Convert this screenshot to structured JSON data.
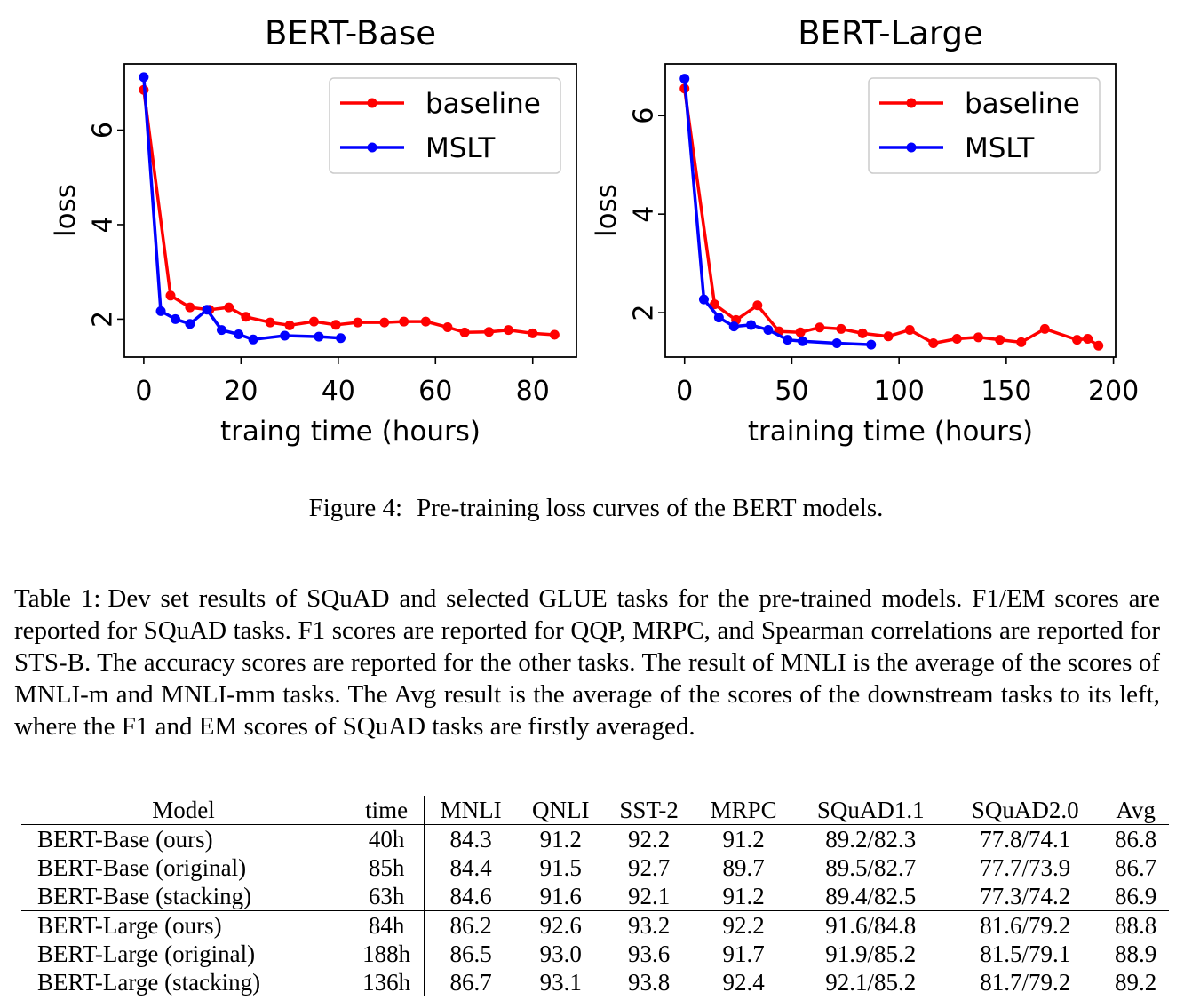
{
  "figure": {
    "caption_label": "Figure 4:",
    "caption_text": "Pre-training loss curves of the BERT models."
  },
  "chart_data": [
    {
      "type": "line",
      "title": "BERT-Base",
      "xlabel": "traing time (hours)",
      "ylabel": "loss",
      "xlim": [
        -4,
        89
      ],
      "ylim": [
        1.2,
        7.4
      ],
      "xticks": [
        0,
        20,
        40,
        60,
        80
      ],
      "yticks": [
        2,
        4,
        6
      ],
      "legend": "upper-right",
      "grid": false,
      "series": [
        {
          "name": "baseline",
          "color": "#ff0000",
          "x": [
            0,
            5.5,
            9.5,
            13.5,
            17.5,
            21,
            26,
            30,
            35,
            39.5,
            44,
            49.5,
            53.5,
            58,
            62.5,
            66,
            71,
            75,
            80,
            84.5
          ],
          "y": [
            6.85,
            2.5,
            2.25,
            2.2,
            2.25,
            2.05,
            1.93,
            1.87,
            1.95,
            1.88,
            1.93,
            1.93,
            1.95,
            1.95,
            1.83,
            1.72,
            1.73,
            1.77,
            1.7,
            1.67
          ]
        },
        {
          "name": "MSLT",
          "color": "#0000ff",
          "x": [
            0,
            3.5,
            6.5,
            9.5,
            13,
            16,
            19.5,
            22.5,
            29,
            36,
            40.5
          ],
          "y": [
            7.12,
            2.17,
            2.0,
            1.9,
            2.2,
            1.77,
            1.68,
            1.57,
            1.65,
            1.63,
            1.6
          ]
        }
      ]
    },
    {
      "type": "line",
      "title": "BERT-Large",
      "xlabel": "training time (hours)",
      "ylabel": "loss",
      "xlim": [
        -9,
        201
      ],
      "ylim": [
        1.1,
        7.05
      ],
      "xticks": [
        0,
        50,
        100,
        150,
        200
      ],
      "yticks": [
        2,
        4,
        6
      ],
      "legend": "upper-right",
      "grid": false,
      "series": [
        {
          "name": "baseline",
          "color": "#ff0000",
          "x": [
            0,
            14,
            24,
            34,
            44,
            54,
            63,
            73,
            83,
            95,
            105,
            116,
            127,
            137,
            147,
            157,
            168,
            183,
            188,
            193
          ],
          "y": [
            6.55,
            2.17,
            1.85,
            2.15,
            1.62,
            1.6,
            1.7,
            1.67,
            1.58,
            1.52,
            1.65,
            1.38,
            1.47,
            1.5,
            1.45,
            1.4,
            1.67,
            1.45,
            1.47,
            1.33
          ]
        },
        {
          "name": "MSLT",
          "color": "#0000ff",
          "x": [
            0,
            9,
            16,
            23,
            31,
            39,
            48,
            55,
            71,
            87
          ],
          "y": [
            6.75,
            2.27,
            1.9,
            1.72,
            1.75,
            1.65,
            1.45,
            1.42,
            1.38,
            1.35
          ]
        }
      ]
    }
  ],
  "table": {
    "caption_label": "Table 1:",
    "caption_text": "Dev set results of SQuAD and selected GLUE tasks for the pre-trained models. F1/EM scores are reported for SQuAD tasks. F1 scores are reported for QQP, MRPC, and Spearman correlations are reported for STS-B. The accuracy scores are reported for the other tasks. The result of MNLI is the average of the scores of MNLI-m and MNLI-mm tasks. The Avg result is the average of the scores of the downstream tasks to its left, where the F1 and EM scores of SQuAD tasks are firstly averaged.",
    "headers": [
      "Model",
      "time",
      "MNLI",
      "QNLI",
      "SST-2",
      "MRPC",
      "SQuAD1.1",
      "SQuAD2.0",
      "Avg"
    ],
    "rows": [
      [
        "BERT-Base (ours)",
        "40h",
        "84.3",
        "91.2",
        "92.2",
        "91.2",
        "89.2/82.3",
        "77.8/74.1",
        "86.8"
      ],
      [
        "BERT-Base (original)",
        "85h",
        "84.4",
        "91.5",
        "92.7",
        "89.7",
        "89.5/82.7",
        "77.7/73.9",
        "86.7"
      ],
      [
        "BERT-Base (stacking)",
        "63h",
        "84.6",
        "91.6",
        "92.1",
        "91.2",
        "89.4/82.5",
        "77.3/74.2",
        "86.9"
      ],
      [
        "BERT-Large (ours)",
        "84h",
        "86.2",
        "92.6",
        "93.2",
        "92.2",
        "91.6/84.8",
        "81.6/79.2",
        "88.8"
      ],
      [
        "BERT-Large (original)",
        "188h",
        "86.5",
        "93.0",
        "93.6",
        "91.7",
        "91.9/85.2",
        "81.5/79.1",
        "88.9"
      ],
      [
        "BERT-Large (stacking)",
        "136h",
        "86.7",
        "93.1",
        "93.8",
        "92.4",
        "92.1/85.2",
        "81.7/79.2",
        "89.2"
      ]
    ]
  }
}
